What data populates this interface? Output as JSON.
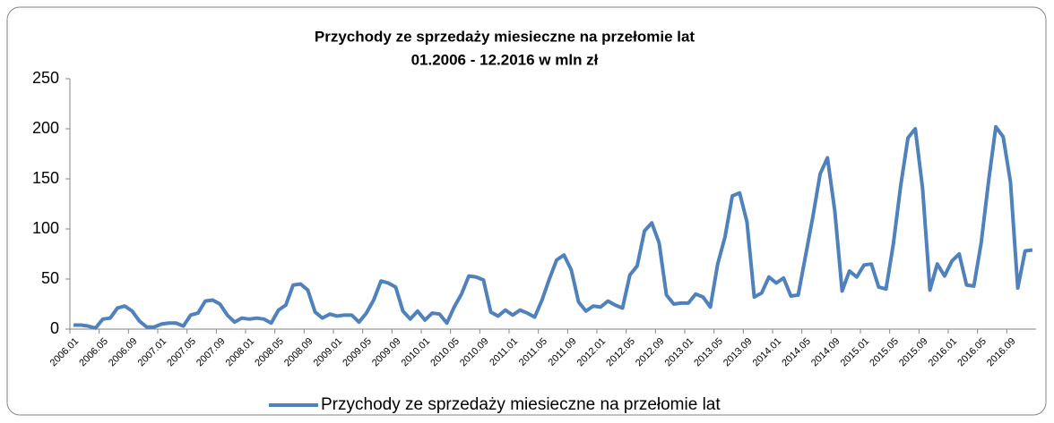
{
  "chart_data": {
    "type": "line",
    "title": "Przychody ze sprzedaży miesieczne na przełomie lat",
    "subtitle": "01.2006 - 12.2016 w mln zł",
    "categories": [
      "2006.01",
      null,
      null,
      null,
      "2006.05",
      null,
      null,
      null,
      "2006.09",
      null,
      null,
      null,
      "2007.01",
      null,
      null,
      null,
      "2007.05",
      null,
      null,
      null,
      "2007.09",
      null,
      null,
      null,
      "2008.01",
      null,
      null,
      null,
      "2008.05",
      null,
      null,
      null,
      "2008.09",
      null,
      null,
      null,
      "2009.01",
      null,
      null,
      null,
      "2009.05",
      null,
      null,
      null,
      "2009.09",
      null,
      null,
      null,
      "2010.01",
      null,
      null,
      null,
      "2010.05",
      null,
      null,
      null,
      "2010.09",
      null,
      null,
      null,
      "2011.01",
      null,
      null,
      null,
      "2011.05",
      null,
      null,
      null,
      "2011.09",
      null,
      null,
      null,
      "2012.01",
      null,
      null,
      null,
      "2012.05",
      null,
      null,
      null,
      "2012.09",
      null,
      null,
      null,
      "2013.01",
      null,
      null,
      null,
      "2013.05",
      null,
      null,
      null,
      "2013.09",
      null,
      null,
      null,
      "2014.01",
      null,
      null,
      null,
      "2014.05",
      null,
      null,
      null,
      "2014.09",
      null,
      null,
      null,
      "2015.01",
      null,
      null,
      null,
      "2015.05",
      null,
      null,
      null,
      "2015.09",
      null,
      null,
      null,
      "2016.01",
      null,
      null,
      null,
      "2016.05",
      null,
      null,
      null,
      "2016.09",
      null,
      null,
      null
    ],
    "series": [
      {
        "name": "Przychody ze sprzedaży miesieczne na przełomie lat",
        "color": "#4f81bd",
        "values": [
          4,
          4,
          3,
          1,
          10,
          11,
          21,
          23,
          18,
          8,
          2,
          2,
          5,
          6,
          6,
          3,
          14,
          16,
          28,
          29,
          25,
          14,
          7,
          11,
          10,
          11,
          10,
          6,
          19,
          24,
          44,
          45,
          39,
          17,
          11,
          15,
          13,
          14,
          14,
          7,
          16,
          29,
          48,
          46,
          42,
          18,
          10,
          18,
          9,
          16,
          15,
          6,
          22,
          35,
          53,
          52,
          49,
          17,
          13,
          19,
          14,
          19,
          16,
          12,
          29,
          50,
          69,
          74,
          59,
          27,
          18,
          23,
          22,
          28,
          24,
          21,
          54,
          63,
          98,
          106,
          86,
          34,
          25,
          26,
          26,
          35,
          32,
          22,
          65,
          92,
          133,
          136,
          107,
          32,
          36,
          52,
          46,
          51,
          33,
          34,
          73,
          112,
          155,
          171,
          118,
          38,
          58,
          52,
          64,
          65,
          42,
          40,
          85,
          143,
          191,
          200,
          140,
          39,
          65,
          53,
          68,
          75,
          44,
          43,
          86,
          147,
          202,
          192,
          147,
          41,
          78,
          79
        ]
      }
    ],
    "ylim": [
      0,
      250
    ],
    "yticks": [
      0,
      50,
      100,
      150,
      200,
      250
    ],
    "grid": false,
    "legend": "bottom"
  }
}
